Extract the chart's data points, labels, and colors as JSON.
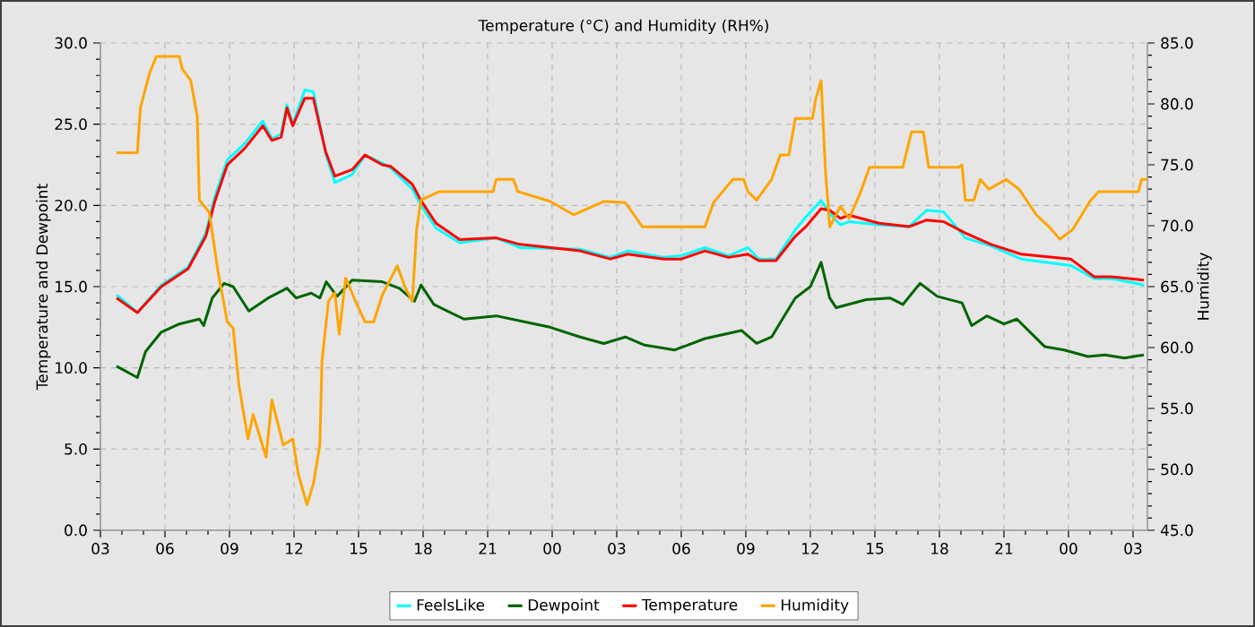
{
  "chart_data": {
    "type": "line",
    "title": "Temperature (°C) and Humidity (RH%)",
    "ylabel": "Temperature and Dewpoint",
    "y2label": "Humidity",
    "xlim": [
      3,
      51.67
    ],
    "xticks": [
      {
        "value": 3,
        "label": "03"
      },
      {
        "value": 6,
        "label": "06"
      },
      {
        "value": 9,
        "label": "09"
      },
      {
        "value": 12,
        "label": "12"
      },
      {
        "value": 15,
        "label": "15"
      },
      {
        "value": 18,
        "label": "18"
      },
      {
        "value": 21,
        "label": "21"
      },
      {
        "value": 24,
        "label": "00"
      },
      {
        "value": 27,
        "label": "03"
      },
      {
        "value": 30,
        "label": "06"
      },
      {
        "value": 33,
        "label": "09"
      },
      {
        "value": 36,
        "label": "12"
      },
      {
        "value": 39,
        "label": "15"
      },
      {
        "value": 42,
        "label": "18"
      },
      {
        "value": 45,
        "label": "21"
      },
      {
        "value": 48,
        "label": "00"
      },
      {
        "value": 51,
        "label": "03"
      }
    ],
    "ylim": [
      0,
      30
    ],
    "yticks": [
      {
        "value": 0,
        "label": "0.0"
      },
      {
        "value": 5,
        "label": "5.0"
      },
      {
        "value": 10,
        "label": "10.0"
      },
      {
        "value": 15,
        "label": "15.0"
      },
      {
        "value": 20,
        "label": "20.0"
      },
      {
        "value": 25,
        "label": "25.0"
      },
      {
        "value": 30,
        "label": "30.0"
      }
    ],
    "y2lim": [
      45,
      85
    ],
    "y2ticks": [
      {
        "value": 45,
        "label": "45.0"
      },
      {
        "value": 50,
        "label": "50.0"
      },
      {
        "value": 55,
        "label": "55.0"
      },
      {
        "value": 60,
        "label": "60.0"
      },
      {
        "value": 65,
        "label": "65.0"
      },
      {
        "value": 70,
        "label": "70.0"
      },
      {
        "value": 75,
        "label": "75.0"
      },
      {
        "value": 80,
        "label": "80.0"
      },
      {
        "value": 85,
        "label": "85.0"
      }
    ],
    "grid": true,
    "legend": "bottom",
    "series": [
      {
        "name": "FeelsLike",
        "color": "#00ffff",
        "x": [
          3.75,
          4.72,
          5.83,
          7.08,
          7.9,
          8.33,
          8.9,
          9.7,
          10.55,
          10.97,
          11.4,
          11.67,
          11.94,
          12.5,
          12.9,
          13.47,
          13.9,
          14.7,
          15.3,
          16.1,
          16.5,
          17.5,
          17.9,
          18.6,
          19.7,
          21.4,
          22.5,
          25.3,
          26.7,
          27.5,
          29.2,
          30.0,
          31.1,
          32.2,
          33.1,
          33.6,
          34.4,
          35.3,
          35.8,
          36.5,
          36.9,
          37.4,
          37.8,
          39.2,
          40.6,
          41.4,
          42.2,
          43.2,
          44.4,
          45.8,
          48.1,
          49.2,
          50.0,
          51.5
        ],
        "values": [
          14.5,
          13.4,
          15.1,
          16.2,
          18.3,
          20.6,
          22.8,
          23.8,
          25.2,
          24.1,
          24.4,
          26.2,
          25.0,
          27.1,
          27.0,
          23.2,
          21.4,
          21.9,
          23.1,
          22.6,
          22.3,
          21.0,
          20.0,
          18.6,
          17.7,
          18.0,
          17.4,
          17.3,
          16.8,
          17.2,
          16.8,
          16.9,
          17.4,
          16.9,
          17.4,
          16.7,
          16.7,
          18.5,
          19.3,
          20.3,
          19.5,
          18.8,
          19.0,
          18.8,
          18.7,
          19.7,
          19.6,
          18.0,
          17.5,
          16.7,
          16.3,
          15.5,
          15.5,
          15.1
        ]
      },
      {
        "name": "Dewpoint",
        "color": "#006400",
        "x": [
          3.75,
          4.72,
          5.1,
          5.83,
          6.67,
          7.6,
          7.8,
          8.2,
          8.75,
          9.17,
          9.9,
          10.8,
          11.67,
          12.1,
          12.8,
          13.2,
          13.5,
          14.0,
          14.7,
          16.1,
          16.9,
          17.6,
          17.9,
          18.5,
          19.9,
          21.4,
          23.2,
          23.9,
          25.3,
          26.4,
          27.4,
          28.3,
          29.7,
          31.1,
          32.8,
          33.5,
          34.2,
          34.7,
          35.3,
          36.0,
          36.5,
          36.9,
          37.2,
          38.6,
          39.7,
          40.3,
          41.1,
          41.9,
          43.05,
          43.5,
          44.2,
          45.0,
          45.6,
          46.9,
          47.8,
          48.9,
          49.7,
          50.6,
          51.5
        ],
        "values": [
          10.1,
          9.4,
          11.0,
          12.2,
          12.7,
          13.0,
          12.6,
          14.3,
          15.2,
          15.0,
          13.5,
          14.3,
          14.9,
          14.3,
          14.6,
          14.3,
          15.3,
          14.4,
          15.4,
          15.3,
          14.9,
          14.1,
          15.1,
          13.9,
          13.0,
          13.2,
          12.7,
          12.5,
          11.9,
          11.5,
          11.9,
          11.4,
          11.1,
          11.8,
          12.3,
          11.5,
          11.9,
          13.0,
          14.3,
          15.0,
          16.5,
          14.3,
          13.7,
          14.2,
          14.3,
          13.9,
          15.2,
          14.4,
          14.0,
          12.6,
          13.2,
          12.7,
          13.0,
          11.3,
          11.1,
          10.7,
          10.8,
          10.6,
          10.8
        ]
      },
      {
        "name": "Temperature",
        "color": "#ff0000",
        "x": [
          3.75,
          4.72,
          5.83,
          7.08,
          7.9,
          8.33,
          8.9,
          9.7,
          10.55,
          10.97,
          11.4,
          11.67,
          11.94,
          12.5,
          12.9,
          13.47,
          13.9,
          14.7,
          15.3,
          16.1,
          16.5,
          17.5,
          17.9,
          18.6,
          19.7,
          21.4,
          22.5,
          25.3,
          26.7,
          27.5,
          29.2,
          30.0,
          31.1,
          32.2,
          33.1,
          33.6,
          34.4,
          35.3,
          35.8,
          36.5,
          36.9,
          37.4,
          37.8,
          39.2,
          40.6,
          41.4,
          42.2,
          43.2,
          44.4,
          45.8,
          48.1,
          49.2,
          50.0,
          51.5
        ],
        "values": [
          14.3,
          13.4,
          15.0,
          16.1,
          18.1,
          20.3,
          22.5,
          23.5,
          24.9,
          24.0,
          24.2,
          26.0,
          24.9,
          26.6,
          26.6,
          23.3,
          21.8,
          22.2,
          23.1,
          22.5,
          22.4,
          21.3,
          20.3,
          18.9,
          17.9,
          18.0,
          17.6,
          17.2,
          16.7,
          17.0,
          16.7,
          16.7,
          17.2,
          16.8,
          17.0,
          16.6,
          16.6,
          18.1,
          18.7,
          19.8,
          19.7,
          19.2,
          19.4,
          18.9,
          18.7,
          19.1,
          19.0,
          18.3,
          17.6,
          17.0,
          16.7,
          15.6,
          15.6,
          15.4
        ]
      },
      {
        "name": "Humidity",
        "color": "#ffa500",
        "axis": "y2",
        "x": [
          3.75,
          4.72,
          4.86,
          5.3,
          5.6,
          6.67,
          6.8,
          7.2,
          7.5,
          7.6,
          8.06,
          8.47,
          8.9,
          9.17,
          9.44,
          9.86,
          10.1,
          10.7,
          10.97,
          11.5,
          11.94,
          12.2,
          12.6,
          12.9,
          13.2,
          13.3,
          13.6,
          13.9,
          14.1,
          14.4,
          14.86,
          15.3,
          15.7,
          16.1,
          16.8,
          17.2,
          17.5,
          17.7,
          17.9,
          18.75,
          21.25,
          21.4,
          22.2,
          22.4,
          23.9,
          25.0,
          26.4,
          27.4,
          28.2,
          31.1,
          31.5,
          32.4,
          32.9,
          33.1,
          33.5,
          34.2,
          34.6,
          35.0,
          35.3,
          36.1,
          36.25,
          36.5,
          36.7,
          36.9,
          37.4,
          37.8,
          38.3,
          38.75,
          40.3,
          40.7,
          41.25,
          41.5,
          42.9,
          43.05,
          43.2,
          43.6,
          43.9,
          44.3,
          45.1,
          45.7,
          46.5,
          47.1,
          47.6,
          48.2,
          49.0,
          49.4,
          51.25,
          51.4,
          51.67
        ],
        "values": [
          76.0,
          76.0,
          79.7,
          82.6,
          83.9,
          83.9,
          82.9,
          81.9,
          79.0,
          72.1,
          71.1,
          66.2,
          62.1,
          61.6,
          56.9,
          52.5,
          54.5,
          51.0,
          55.7,
          52.0,
          52.5,
          49.6,
          47.1,
          48.8,
          52.0,
          58.9,
          63.8,
          64.5,
          61.1,
          65.7,
          63.8,
          62.1,
          62.1,
          64.3,
          66.7,
          64.8,
          63.8,
          69.7,
          72.1,
          72.8,
          72.8,
          73.8,
          73.8,
          72.8,
          72.0,
          70.9,
          72.0,
          71.9,
          69.9,
          69.9,
          71.9,
          73.8,
          73.8,
          72.8,
          72.1,
          73.8,
          75.8,
          75.8,
          78.8,
          78.8,
          80.4,
          81.9,
          74.6,
          69.9,
          71.6,
          70.6,
          72.6,
          74.8,
          74.8,
          77.7,
          77.7,
          74.8,
          74.8,
          75.0,
          72.1,
          72.1,
          73.8,
          73.0,
          73.8,
          73.0,
          70.9,
          69.9,
          68.9,
          69.7,
          72.0,
          72.8,
          72.8,
          73.8,
          73.8
        ]
      }
    ]
  }
}
